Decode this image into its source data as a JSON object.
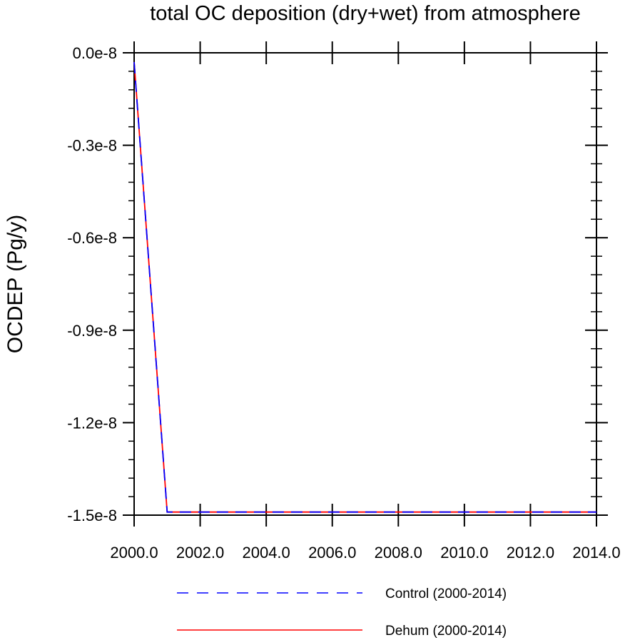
{
  "chart_data": {
    "type": "line",
    "title": "total OC deposition (dry+wet) from atmosphere",
    "xlabel": "",
    "ylabel": "OCDEP  (Pg/y)",
    "xlim": [
      2000,
      2014
    ],
    "ylim": [
      -1.5e-08,
      0.0
    ],
    "x_ticks": [
      2000,
      2002,
      2004,
      2006,
      2008,
      2010,
      2012,
      2014
    ],
    "x_tick_labels": [
      "2000.0",
      "2002.0",
      "2004.0",
      "2006.0",
      "2008.0",
      "2010.0",
      "2012.0",
      "2014.0"
    ],
    "y_ticks": [
      0.0,
      -3e-09,
      -6e-09,
      -9e-09,
      -1.2e-08,
      -1.5e-08
    ],
    "y_tick_labels": [
      "0.0e-8",
      "-0.3e-8",
      "-0.6e-8",
      "-0.9e-8",
      "-1.2e-8",
      "-1.5e-8"
    ],
    "grid": false,
    "legend_position": "bottom",
    "series": [
      {
        "name": "Control (2000-2014)",
        "color": "#0000ff",
        "style": "dashed",
        "x": [
          2000,
          2001,
          2002,
          2003,
          2004,
          2005,
          2006,
          2007,
          2008,
          2009,
          2010,
          2011,
          2012,
          2013,
          2014
        ],
        "values": [
          -3e-10,
          -1.49e-08,
          -1.49e-08,
          -1.49e-08,
          -1.49e-08,
          -1.49e-08,
          -1.49e-08,
          -1.49e-08,
          -1.49e-08,
          -1.49e-08,
          -1.49e-08,
          -1.49e-08,
          -1.49e-08,
          -1.49e-08,
          -1.49e-08
        ]
      },
      {
        "name": "Dehum (2000-2014)",
        "color": "#ff0000",
        "style": "solid",
        "x": [
          2000,
          2001,
          2002,
          2003,
          2004,
          2005,
          2006,
          2007,
          2008,
          2009,
          2010,
          2011,
          2012,
          2013,
          2014
        ],
        "values": [
          -3e-10,
          -1.49e-08,
          -1.49e-08,
          -1.49e-08,
          -1.49e-08,
          -1.49e-08,
          -1.49e-08,
          -1.49e-08,
          -1.49e-08,
          -1.49e-08,
          -1.49e-08,
          -1.49e-08,
          -1.49e-08,
          -1.49e-08,
          -1.49e-08
        ]
      }
    ]
  }
}
